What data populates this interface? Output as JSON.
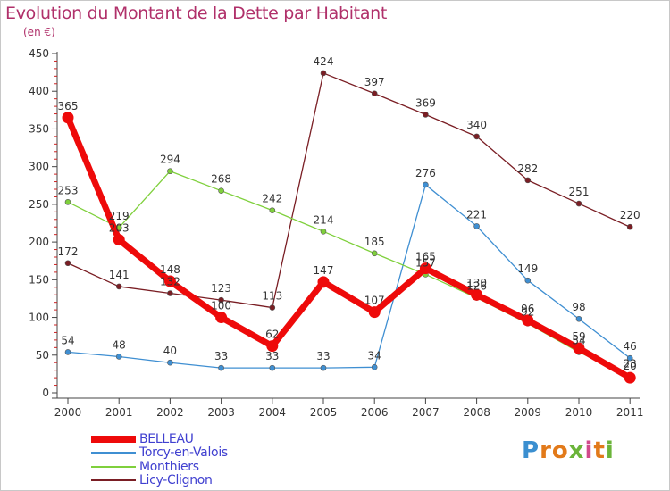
{
  "title": "Evolution du Montant de la Dette par Habitant",
  "subtitle": "(en €)",
  "logo": {
    "letters": [
      "P",
      "r",
      "o",
      "x",
      "i",
      "t",
      "i"
    ],
    "colors": [
      "#3b8fd0",
      "#e27a1a",
      "#e27a1a",
      "#6bb43a",
      "#d14a8c",
      "#e27a1a",
      "#6bb43a"
    ]
  },
  "chart_data": {
    "type": "line",
    "categories": [
      "2000",
      "2001",
      "2002",
      "2003",
      "2004",
      "2005",
      "2006",
      "2007",
      "2008",
      "2009",
      "2010",
      "2011"
    ],
    "yticks": [
      "0",
      "50",
      "100",
      "150",
      "200",
      "250",
      "300",
      "350",
      "400",
      "450"
    ],
    "ylim": [
      0,
      450
    ],
    "grid": false,
    "legend": "bottom-left",
    "series": [
      {
        "name": "Licy-Clignon",
        "color": "#7a1e24",
        "values": [
          172,
          141,
          132,
          123,
          113,
          424,
          397,
          369,
          340,
          282,
          251,
          220
        ],
        "labels": [
          "172",
          "141",
          "132",
          "123",
          "113",
          "424",
          "397",
          "369",
          "340",
          "282",
          "251",
          "220"
        ]
      },
      {
        "name": "Torcy-en-Valois",
        "color": "#3f8fd2",
        "values": [
          54,
          48,
          40,
          33,
          33,
          33,
          34,
          276,
          221,
          149,
          98,
          46
        ],
        "labels": [
          "54",
          "48",
          "40",
          "33",
          "33",
          "33",
          "34",
          "276",
          "221",
          "149",
          "98",
          "46"
        ]
      },
      {
        "name": "Monthiers",
        "color": "#7fd03c",
        "values": [
          253,
          219,
          294,
          268,
          242,
          214,
          185,
          157,
          126,
          92,
          54,
          23
        ],
        "labels": [
          "253",
          "219",
          "294",
          "268",
          "242",
          "214",
          "185",
          "157",
          "126",
          "92",
          "54",
          "23"
        ]
      },
      {
        "name": "BELLEAU",
        "color": "#ee0a0a",
        "values": [
          365,
          203,
          148,
          100,
          62,
          147,
          107,
          165,
          130,
          96,
          59,
          20
        ],
        "labels": [
          "365",
          "203",
          "148",
          "100",
          "62",
          "147",
          "107",
          "165",
          "130",
          "96",
          "59",
          "20"
        ]
      }
    ],
    "legend_order": [
      "BELLEAU",
      "Torcy-en-Valois",
      "Monthiers",
      "Licy-Clignon"
    ]
  }
}
